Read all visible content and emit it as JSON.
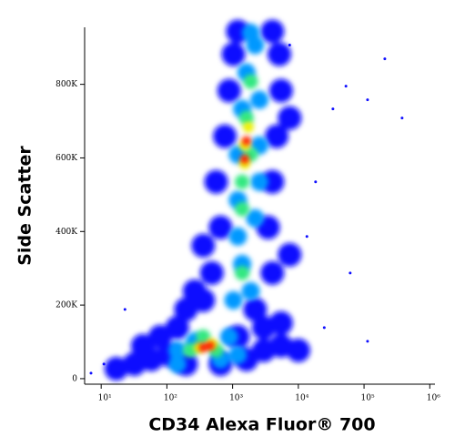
{
  "chart_data": {
    "type": "scatter",
    "x_label": "CD34 Alexa Fluor® 700",
    "y_label": "Side Scatter",
    "xscale": "log",
    "xlim": [
      5.6,
      1200000
    ],
    "ylim": [
      -15000,
      955000
    ],
    "xticks": [
      {
        "value": 10,
        "label": "10¹"
      },
      {
        "value": 100,
        "label": "10²"
      },
      {
        "value": 1000,
        "label": "10³"
      },
      {
        "value": 10000,
        "label": "10⁴"
      },
      {
        "value": 100000,
        "label": "10⁵"
      },
      {
        "value": 1000000,
        "label": "10⁶"
      }
    ],
    "yticks": [
      0,
      {
        "value": 200000,
        "label": "200K"
      },
      {
        "value": 400000,
        "label": "400K"
      },
      {
        "value": 600000,
        "label": "600K"
      },
      {
        "value": 800000,
        "label": "800K"
      }
    ],
    "series": [
      {
        "color": "#1010ff",
        "x": [
          33600,
          113000,
          207000,
          379000,
          61500,
          24800,
          53000,
          11,
          7,
          13500,
          18300,
          23,
          113000,
          7380
        ],
        "y": [
          733100,
          757900,
          869400,
          708400,
          287300,
          138700,
          795100,
          39600,
          14900,
          386400,
          535000,
          188200,
          101600,
          906700
        ]
      },
      {
        "color": "#0a0aff",
        "x": [
          17,
          32,
          58,
          106,
          195,
          655,
          1623,
          2976,
          5455,
          10000,
          43,
          79,
          144,
          1200,
          2976,
          195,
          357,
          2198,
          5455,
          483,
          4027,
          655,
          3460,
          562,
          4027,
          762,
          4688,
          886,
          5455,
          1030,
          5140,
          1200,
          4027,
          7380,
          357,
          7380,
          264
        ],
        "y": [
          27000,
          39600,
          52000,
          64400,
          39600,
          39600,
          52000,
          76800,
          89200,
          76800,
          89200,
          113900,
          138700,
          113900,
          138700,
          188200,
          213000,
          188200,
          151100,
          287300,
          287300,
          411100,
          411100,
          535000,
          535000,
          658800,
          658800,
          782700,
          782700,
          881800,
          881800,
          943700,
          943700,
          708400,
          361600,
          336800,
          237800
        ]
      },
      {
        "color": "#0098ff",
        "x": [
          144,
          264,
          886,
          655,
          144,
          1200,
          1030,
          1888,
          1396,
          1200,
          2198,
          1200,
          2560,
          1200,
          2560,
          1396,
          2560,
          1623,
          2198,
          1888
        ],
        "y": [
          76800,
          101500,
          113900,
          52000,
          39600,
          64400,
          213000,
          237800,
          311900,
          386400,
          435900,
          485500,
          535000,
          609300,
          634000,
          733100,
          757900,
          832400,
          906700,
          940000
        ]
      },
      {
        "color": "#30e880",
        "x": [
          226,
          562,
          357,
          1396,
          1396,
          1888,
          1623,
          1888,
          1396
        ],
        "y": [
          76800,
          76800,
          113900,
          287300,
          535000,
          609300,
          708400,
          807500,
          460700
        ]
      },
      {
        "color": "#f0f000",
        "x": [
          307,
          483,
          1528,
          1730,
          1528
        ],
        "y": [
          84200,
          94100,
          584500,
          683600,
          634000
        ]
      },
      {
        "color": "#ff1a00",
        "x": [
          357,
          455,
          1623,
          1528
        ],
        "y": [
          84200,
          89200,
          646400,
          596900
        ]
      }
    ]
  }
}
